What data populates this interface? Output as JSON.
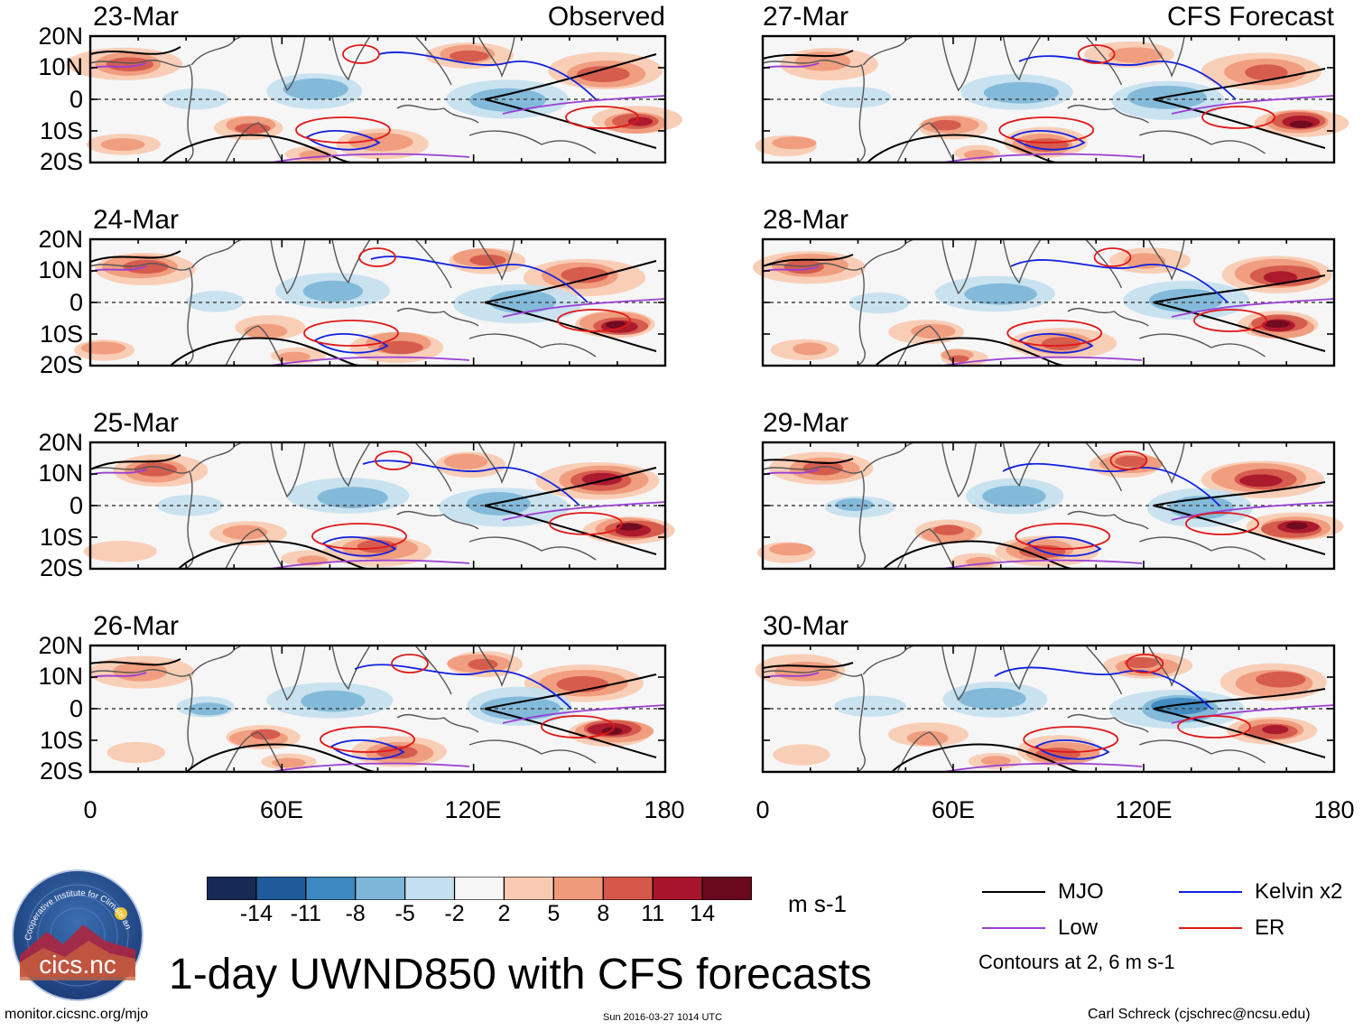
{
  "chart_data": {
    "type": "heatmap",
    "title": "1-day UWND850 with CFS forecasts",
    "variable": "UWND850",
    "units": "m s-1",
    "xaxis": {
      "ticks": [
        "0",
        "60E",
        "120E",
        "180"
      ],
      "range": [
        0,
        180
      ]
    },
    "yaxis": {
      "ticks": [
        "20N",
        "10N",
        "0",
        "10S",
        "20S"
      ],
      "range": [
        -20,
        20
      ]
    },
    "columns": [
      {
        "label": "Observed",
        "dates": [
          "23-Mar",
          "24-Mar",
          "25-Mar",
          "26-Mar"
        ]
      },
      {
        "label": "CFS Forecast",
        "dates": [
          "27-Mar",
          "28-Mar",
          "29-Mar",
          "30-Mar"
        ]
      }
    ],
    "colorbar": {
      "ticks": [
        "-14",
        "-11",
        "-8",
        "-5",
        "-2",
        "2",
        "5",
        "8",
        "11",
        "14"
      ],
      "colors": [
        "#172a55",
        "#1f5a9a",
        "#3d88c0",
        "#7db6d8",
        "#c4dfef",
        "#f6f6f6",
        "#f8cab1",
        "#ef9a7a",
        "#d4574a",
        "#a8152b",
        "#6b0a1e"
      ]
    },
    "contour_legend": [
      {
        "name": "MJO",
        "color": "#000000"
      },
      {
        "name": "Kelvin x2",
        "color": "#1020e0"
      },
      {
        "name": "Low",
        "color": "#9a3fd4"
      },
      {
        "name": "ER",
        "color": "#e01818"
      }
    ],
    "contour_note": "Contours at 2, 6 m s-1"
  },
  "logo": {
    "org_name": "Cooperative Institute for Climate and Satellites",
    "wordmark": "cics.nc"
  },
  "footer": {
    "url": "monitor.cicsnc.org/mjo",
    "timestamp": "Sun 2016-03-27 1014 UTC",
    "author": "Carl Schreck (cjschrec@ncsu.edu)"
  }
}
